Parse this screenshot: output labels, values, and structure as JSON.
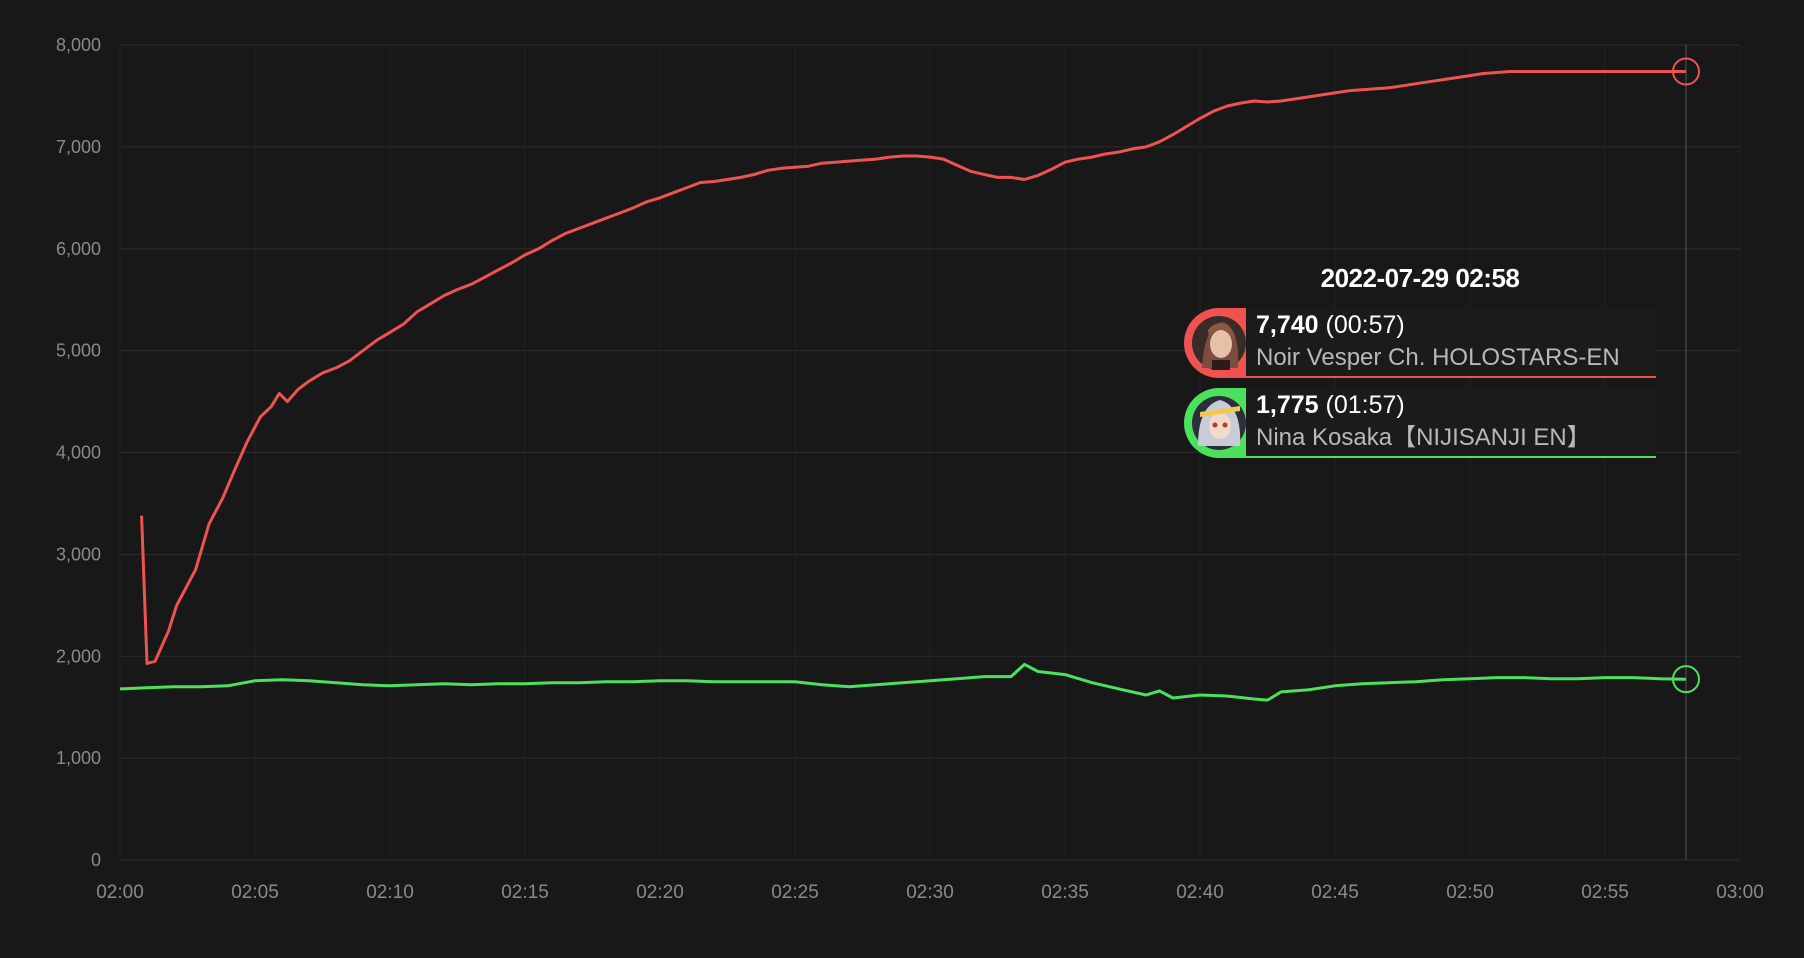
{
  "chart_data": {
    "type": "line",
    "y_ticks": [
      "0",
      "1,000",
      "2,000",
      "3,000",
      "4,000",
      "5,000",
      "6,000",
      "7,000",
      "8,000"
    ],
    "x_ticks": [
      "02:00",
      "02:05",
      "02:10",
      "02:15",
      "02:20",
      "02:25",
      "02:30",
      "02:35",
      "02:40",
      "02:45",
      "02:50",
      "02:55",
      "03:00"
    ],
    "xlim_minutes": [
      0,
      60
    ],
    "ylim": [
      0,
      8000
    ],
    "grid": true,
    "series": [
      {
        "name": "Noir Vesper Ch. HOLOSTARS-EN",
        "color": "#ef5350",
        "points": [
          [
            0.8,
            3380
          ],
          [
            1.0,
            1930
          ],
          [
            1.3,
            1950
          ],
          [
            1.8,
            2250
          ],
          [
            2.1,
            2500
          ],
          [
            2.5,
            2700
          ],
          [
            2.8,
            2850
          ],
          [
            3.3,
            3300
          ],
          [
            3.8,
            3550
          ],
          [
            4.2,
            3800
          ],
          [
            4.7,
            4100
          ],
          [
            5.2,
            4350
          ],
          [
            5.6,
            4450
          ],
          [
            5.9,
            4580
          ],
          [
            6.2,
            4500
          ],
          [
            6.6,
            4620
          ],
          [
            7.0,
            4700
          ],
          [
            7.5,
            4780
          ],
          [
            8.0,
            4830
          ],
          [
            8.5,
            4900
          ],
          [
            9.0,
            5000
          ],
          [
            9.5,
            5100
          ],
          [
            10.0,
            5180
          ],
          [
            10.5,
            5260
          ],
          [
            11.0,
            5380
          ],
          [
            11.5,
            5460
          ],
          [
            12.0,
            5540
          ],
          [
            12.5,
            5600
          ],
          [
            13.0,
            5650
          ],
          [
            13.5,
            5720
          ],
          [
            14.0,
            5790
          ],
          [
            14.5,
            5860
          ],
          [
            15.0,
            5940
          ],
          [
            15.5,
            6000
          ],
          [
            16.0,
            6080
          ],
          [
            16.5,
            6150
          ],
          [
            17.0,
            6200
          ],
          [
            17.5,
            6250
          ],
          [
            18.0,
            6300
          ],
          [
            18.5,
            6350
          ],
          [
            19.0,
            6400
          ],
          [
            19.5,
            6460
          ],
          [
            20.0,
            6500
          ],
          [
            20.5,
            6550
          ],
          [
            21.0,
            6600
          ],
          [
            21.5,
            6650
          ],
          [
            22.0,
            6660
          ],
          [
            22.5,
            6680
          ],
          [
            23.0,
            6700
          ],
          [
            23.5,
            6730
          ],
          [
            24.0,
            6770
          ],
          [
            24.5,
            6790
          ],
          [
            25.0,
            6800
          ],
          [
            25.5,
            6810
          ],
          [
            26.0,
            6840
          ],
          [
            26.5,
            6850
          ],
          [
            27.0,
            6860
          ],
          [
            27.5,
            6870
          ],
          [
            28.0,
            6880
          ],
          [
            28.5,
            6900
          ],
          [
            29.0,
            6910
          ],
          [
            29.5,
            6910
          ],
          [
            30.0,
            6900
          ],
          [
            30.5,
            6880
          ],
          [
            31.0,
            6820
          ],
          [
            31.5,
            6760
          ],
          [
            32.0,
            6730
          ],
          [
            32.5,
            6700
          ],
          [
            33.0,
            6700
          ],
          [
            33.5,
            6680
          ],
          [
            34.0,
            6720
          ],
          [
            34.5,
            6780
          ],
          [
            35.0,
            6850
          ],
          [
            35.5,
            6880
          ],
          [
            36.0,
            6900
          ],
          [
            36.5,
            6930
          ],
          [
            37.0,
            6950
          ],
          [
            37.5,
            6980
          ],
          [
            38.0,
            7000
          ],
          [
            38.5,
            7050
          ],
          [
            39.0,
            7120
          ],
          [
            39.5,
            7200
          ],
          [
            40.0,
            7280
          ],
          [
            40.5,
            7350
          ],
          [
            41.0,
            7400
          ],
          [
            41.5,
            7430
          ],
          [
            42.0,
            7450
          ],
          [
            42.5,
            7440
          ],
          [
            43.0,
            7450
          ],
          [
            43.5,
            7470
          ],
          [
            44.0,
            7490
          ],
          [
            44.5,
            7510
          ],
          [
            45.0,
            7530
          ],
          [
            45.5,
            7550
          ],
          [
            46.0,
            7560
          ],
          [
            46.5,
            7570
          ],
          [
            47.0,
            7580
          ],
          [
            47.5,
            7600
          ],
          [
            48.0,
            7620
          ],
          [
            48.5,
            7640
          ],
          [
            49.0,
            7660
          ],
          [
            49.5,
            7680
          ],
          [
            50.0,
            7700
          ],
          [
            50.5,
            7720
          ],
          [
            51.0,
            7730
          ],
          [
            51.5,
            7740
          ],
          [
            52.0,
            7740
          ],
          [
            52.5,
            7740
          ],
          [
            53.0,
            7740
          ],
          [
            53.5,
            7740
          ],
          [
            54.0,
            7740
          ],
          [
            54.5,
            7740
          ],
          [
            55.0,
            7740
          ],
          [
            55.5,
            7740
          ],
          [
            56.0,
            7740
          ],
          [
            56.5,
            7740
          ],
          [
            57.0,
            7740
          ],
          [
            58.0,
            7740
          ]
        ]
      },
      {
        "name": "Nina Kosaka【NIJISANJI EN】",
        "color": "#4be15d",
        "points": [
          [
            0,
            1680
          ],
          [
            1,
            1690
          ],
          [
            2,
            1700
          ],
          [
            3,
            1700
          ],
          [
            4,
            1710
          ],
          [
            5,
            1760
          ],
          [
            6,
            1770
          ],
          [
            7,
            1760
          ],
          [
            8,
            1740
          ],
          [
            9,
            1720
          ],
          [
            10,
            1710
          ],
          [
            11,
            1720
          ],
          [
            12,
            1730
          ],
          [
            13,
            1720
          ],
          [
            14,
            1730
          ],
          [
            15,
            1730
          ],
          [
            16,
            1740
          ],
          [
            17,
            1740
          ],
          [
            18,
            1750
          ],
          [
            19,
            1750
          ],
          [
            20,
            1760
          ],
          [
            21,
            1760
          ],
          [
            22,
            1750
          ],
          [
            23,
            1750
          ],
          [
            24,
            1750
          ],
          [
            25,
            1750
          ],
          [
            26,
            1720
          ],
          [
            27,
            1700
          ],
          [
            28,
            1720
          ],
          [
            29,
            1740
          ],
          [
            30,
            1760
          ],
          [
            31,
            1780
          ],
          [
            32,
            1800
          ],
          [
            33,
            1800
          ],
          [
            33.5,
            1920
          ],
          [
            34,
            1850
          ],
          [
            35,
            1820
          ],
          [
            36,
            1740
          ],
          [
            37,
            1680
          ],
          [
            38,
            1620
          ],
          [
            38.5,
            1660
          ],
          [
            39,
            1590
          ],
          [
            40,
            1620
          ],
          [
            41,
            1610
          ],
          [
            42,
            1580
          ],
          [
            42.5,
            1570
          ],
          [
            43,
            1650
          ],
          [
            44,
            1670
          ],
          [
            45,
            1710
          ],
          [
            46,
            1730
          ],
          [
            47,
            1740
          ],
          [
            48,
            1750
          ],
          [
            49,
            1770
          ],
          [
            50,
            1780
          ],
          [
            51,
            1790
          ],
          [
            52,
            1790
          ],
          [
            53,
            1780
          ],
          [
            54,
            1780
          ],
          [
            55,
            1790
          ],
          [
            56,
            1790
          ],
          [
            57,
            1780
          ],
          [
            58,
            1775
          ]
        ]
      }
    ]
  },
  "tooltip": {
    "date": "2022-07-29 02:58",
    "entries": [
      {
        "value": "7,740",
        "duration": "(00:57)",
        "name": "Noir Vesper Ch. HOLOSTARS-EN",
        "color": "#ef5350"
      },
      {
        "value": "1,775",
        "duration": "(01:57)",
        "name": "Nina Kosaka【NIJISANJI EN】",
        "color": "#4be15d"
      }
    ]
  }
}
